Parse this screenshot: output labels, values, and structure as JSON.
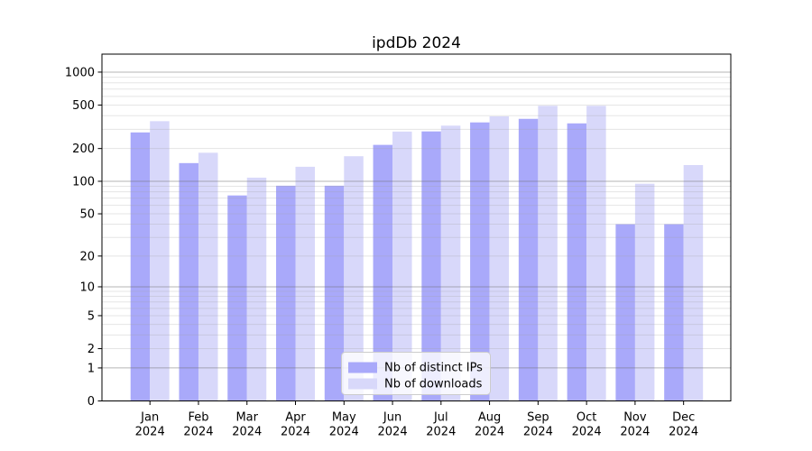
{
  "title": "ipdDb 2024",
  "chart_data": {
    "type": "bar",
    "title": "ipdDb 2024",
    "categories": [
      "Jan 2024",
      "Feb 2024",
      "Mar 2024",
      "Apr 2024",
      "May 2024",
      "Jun 2024",
      "Jul 2024",
      "Aug 2024",
      "Sep 2024",
      "Oct 2024",
      "Nov 2024",
      "Dec 2024"
    ],
    "month_labels": [
      "Jan",
      "Feb",
      "Mar",
      "Apr",
      "May",
      "Jun",
      "Jul",
      "Aug",
      "Sep",
      "Oct",
      "Nov",
      "Dec"
    ],
    "year_label": "2024",
    "series": [
      {
        "name": "Nb of distinct IPs",
        "color": "#a9a9fa",
        "values": [
          281,
          147,
          74,
          91,
          91,
          216,
          287,
          347,
          374,
          340,
          40,
          40
        ]
      },
      {
        "name": "Nb of downloads",
        "color": "#d8d8fa",
        "values": [
          356,
          183,
          108,
          136,
          170,
          286,
          324,
          394,
          492,
          492,
          95,
          141
        ]
      }
    ],
    "xlabel": "",
    "ylabel": "",
    "y_scale": "log1p",
    "ylim": [
      0,
      1460
    ],
    "y_ticks": [
      0,
      1,
      2,
      5,
      10,
      20,
      50,
      100,
      200,
      500,
      1000
    ],
    "y_major_gridlines": [
      1,
      10,
      100,
      1000
    ],
    "y_minor_gridlines": [
      2,
      3,
      4,
      5,
      6,
      7,
      8,
      9,
      20,
      30,
      40,
      50,
      60,
      70,
      80,
      90,
      200,
      300,
      400,
      500,
      600,
      700,
      800,
      900
    ],
    "grid": true,
    "legend_position": "lower center"
  },
  "colors": {
    "bar_dark": "#a9a9fa",
    "bar_light": "#d8d8fa",
    "major_grid": "rgba(110,110,110,0.50)",
    "minor_grid": "rgba(160,160,160,0.28)",
    "frame": "#000000",
    "legend_border": "#cccccc",
    "legend_bg": "rgba(255,255,255,0.8)"
  }
}
